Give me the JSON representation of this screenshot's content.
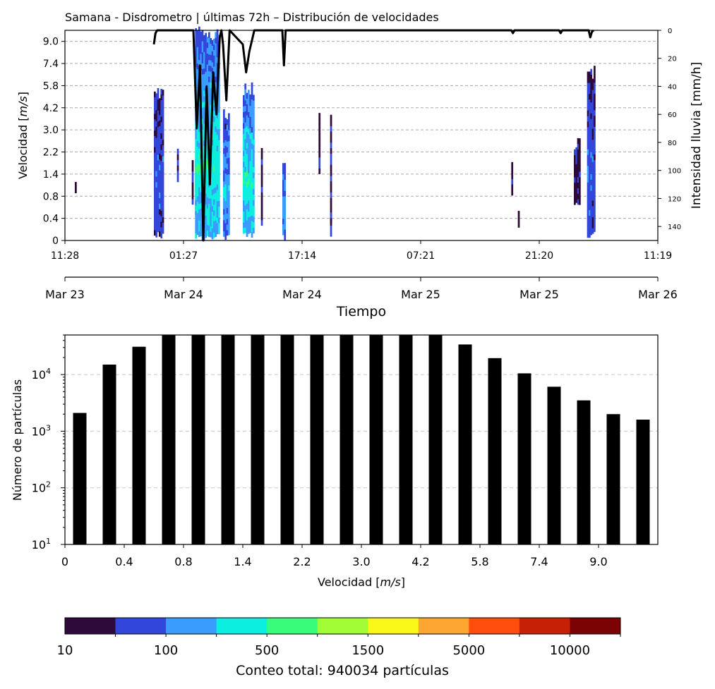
{
  "chart_data": [
    {
      "type": "heatmap",
      "title": "Samana - Disdrometro | últimas 72h – Distribución de velocidades",
      "ylabel_prefix": "Velocidad [",
      "ylabel_unit": "m/s",
      "ylabel_suffix": "]",
      "y2label": "Intensidad lluvia [mm/h]",
      "velocity_classes": [
        "0",
        "0.4",
        "0.8",
        "1.4",
        "2.2",
        "3.0",
        "4.2",
        "5.8",
        "7.4",
        "9.0"
      ],
      "time_ticks": [
        "11:28",
        "01:27",
        "17:14",
        "07:21",
        "21:20",
        "11:19"
      ],
      "date_ticks": [
        "Mar 23",
        "Mar 24",
        "Mar 24",
        "Mar 25",
        "Mar 25",
        "Mar 26"
      ],
      "xlabel": "Tiempo",
      "y2_ticks": [
        0,
        20,
        40,
        60,
        80,
        100,
        120,
        140
      ],
      "y2_range": [
        0,
        150
      ],
      "y2_inverted": true,
      "grid": "horizontal dashed",
      "time_range_hours": [
        0,
        72
      ],
      "events": [
        {
          "t_start": 1.2,
          "t_end": 1.4,
          "v_lo": 2.0,
          "v_hi": 2.8,
          "cls": 0
        },
        {
          "t_start": 10.8,
          "t_end": 12.0,
          "v_lo": 0.1,
          "v_hi": 7.0,
          "cls": 1
        },
        {
          "t_start": 13.6,
          "t_end": 13.8,
          "v_lo": 2.5,
          "v_hi": 4.5,
          "cls": 0
        },
        {
          "t_start": 15.4,
          "t_end": 15.6,
          "v_lo": 1.5,
          "v_hi": 3.5,
          "cls": 0
        },
        {
          "t_start": 15.8,
          "t_end": 16.0,
          "v_lo": 0.9,
          "v_hi": 4.0,
          "cls": 0
        },
        {
          "t_start": 15.8,
          "t_end": 18.8,
          "v_lo": 0.0,
          "v_hi": 9.5,
          "cls": 3
        },
        {
          "t_start": 19.2,
          "t_end": 20.0,
          "v_lo": 0.0,
          "v_hi": 5.8,
          "cls": 2
        },
        {
          "t_start": 21.6,
          "t_end": 23.0,
          "v_lo": 0.1,
          "v_hi": 7.0,
          "cls": 3
        },
        {
          "t_start": 23.8,
          "t_end": 24.0,
          "v_lo": 0.4,
          "v_hi": 4.5,
          "cls": 0
        },
        {
          "t_start": 26.4,
          "t_end": 26.8,
          "v_lo": 0.0,
          "v_hi": 3.5,
          "cls": 2
        },
        {
          "t_start": 30.8,
          "t_end": 31.0,
          "v_lo": 2.8,
          "v_hi": 5.8,
          "cls": 0
        },
        {
          "t_start": 32.2,
          "t_end": 32.4,
          "v_lo": 0.1,
          "v_hi": 6.0,
          "cls": 0
        },
        {
          "t_start": 32.2,
          "t_end": 32.4,
          "v_lo": 0.7,
          "v_hi": 1.6,
          "cls": 1
        },
        {
          "t_start": 54.2,
          "t_end": 54.4,
          "v_lo": 2.0,
          "v_hi": 3.6,
          "cls": 0
        },
        {
          "t_start": 55.0,
          "t_end": 55.2,
          "v_lo": 0.5,
          "v_hi": 1.5,
          "cls": 0
        },
        {
          "t_start": 61.8,
          "t_end": 62.6,
          "v_lo": 1.6,
          "v_hi": 4.5,
          "cls": 0
        },
        {
          "t_start": 63.4,
          "t_end": 64.4,
          "v_lo": 0.1,
          "v_hi": 7.8,
          "cls": 1
        }
      ],
      "rain_intensity": [
        {
          "t": 10.8,
          "v": 10
        },
        {
          "t": 11.0,
          "v": 2
        },
        {
          "t": 11.2,
          "v": 0
        },
        {
          "t": 15.6,
          "v": 0
        },
        {
          "t": 16.0,
          "v": 70
        },
        {
          "t": 16.4,
          "v": 25
        },
        {
          "t": 16.8,
          "v": 150
        },
        {
          "t": 17.2,
          "v": 40
        },
        {
          "t": 17.6,
          "v": 110
        },
        {
          "t": 18.0,
          "v": 30
        },
        {
          "t": 18.4,
          "v": 60
        },
        {
          "t": 18.8,
          "v": 5
        },
        {
          "t": 19.0,
          "v": 0
        },
        {
          "t": 19.2,
          "v": 10
        },
        {
          "t": 19.6,
          "v": 50
        },
        {
          "t": 20.0,
          "v": 0
        },
        {
          "t": 21.6,
          "v": 10
        },
        {
          "t": 22.0,
          "v": 30
        },
        {
          "t": 22.4,
          "v": 15
        },
        {
          "t": 22.8,
          "v": 5
        },
        {
          "t": 23.0,
          "v": 0
        },
        {
          "t": 26.4,
          "v": 0
        },
        {
          "t": 26.6,
          "v": 25
        },
        {
          "t": 26.8,
          "v": 0
        },
        {
          "t": 54.2,
          "v": 0
        },
        {
          "t": 54.4,
          "v": 2
        },
        {
          "t": 54.6,
          "v": 0
        },
        {
          "t": 60.0,
          "v": 0
        },
        {
          "t": 60.2,
          "v": 2
        },
        {
          "t": 60.4,
          "v": 0
        },
        {
          "t": 63.6,
          "v": 0
        },
        {
          "t": 63.8,
          "v": 5
        },
        {
          "t": 64.0,
          "v": 1
        },
        {
          "t": 64.2,
          "v": 0
        }
      ]
    },
    {
      "type": "bar",
      "ylabel": "Número de partículas",
      "xlabel_prefix": "Velocidad [",
      "xlabel_unit": "m/s",
      "xlabel_suffix": "]",
      "yscale": "log",
      "ylim": [
        10,
        50000
      ],
      "y_ticks": [
        {
          "base": "10",
          "exp": "1"
        },
        {
          "base": "10",
          "exp": "2"
        },
        {
          "base": "10",
          "exp": "3"
        },
        {
          "base": "10",
          "exp": "4"
        }
      ],
      "x_ticks": [
        "0",
        "0.4",
        "0.8",
        "1.4",
        "2.2",
        "3.0",
        "4.2",
        "5.8",
        "7.4",
        "9.0"
      ],
      "bar_color": "#000000",
      "grid": "horizontal dashed",
      "values": [
        2100,
        15000,
        31000,
        50000,
        50000,
        50000,
        50000,
        50000,
        50000,
        50000,
        50000,
        50000,
        50000,
        34000,
        19500,
        10500,
        6100,
        3500,
        2000,
        1600
      ]
    }
  ],
  "colorbar": {
    "colors": [
      "#2d0a3a",
      "#3247da",
      "#3a9dfd",
      "#0ceee0",
      "#37fd7a",
      "#a2fd36",
      "#f8f717",
      "#fea632",
      "#fe4d0d",
      "#c62106",
      "#7b0303"
    ],
    "tick_labels": [
      "10",
      "100",
      "500",
      "1500",
      "5000",
      "10000"
    ],
    "label": "Conteo total: 940034 partículas"
  }
}
